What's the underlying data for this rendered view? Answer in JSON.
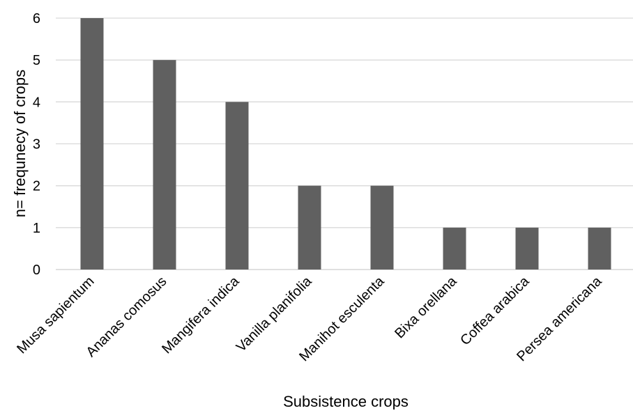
{
  "chart_data": {
    "type": "bar",
    "title": "",
    "xlabel": "Subsistence crops",
    "ylabel": "n= frequnecy of crops",
    "categories": [
      "Musa sapientum",
      "Ananas comosus",
      "Mangifera indica",
      "Vanilla planifolia",
      "Manihot esculenta",
      "Bixa orellana",
      "Coffea arabica",
      "Persea americana"
    ],
    "values": [
      6,
      5,
      4,
      2,
      2,
      1,
      1,
      1
    ],
    "ylim": [
      0,
      6
    ],
    "yticks": [
      0,
      1,
      2,
      3,
      4,
      5,
      6
    ],
    "grid": true,
    "legend": "none",
    "colors": {
      "bar": "#606060",
      "grid": "#d9d9d9",
      "text": "#000000"
    }
  }
}
